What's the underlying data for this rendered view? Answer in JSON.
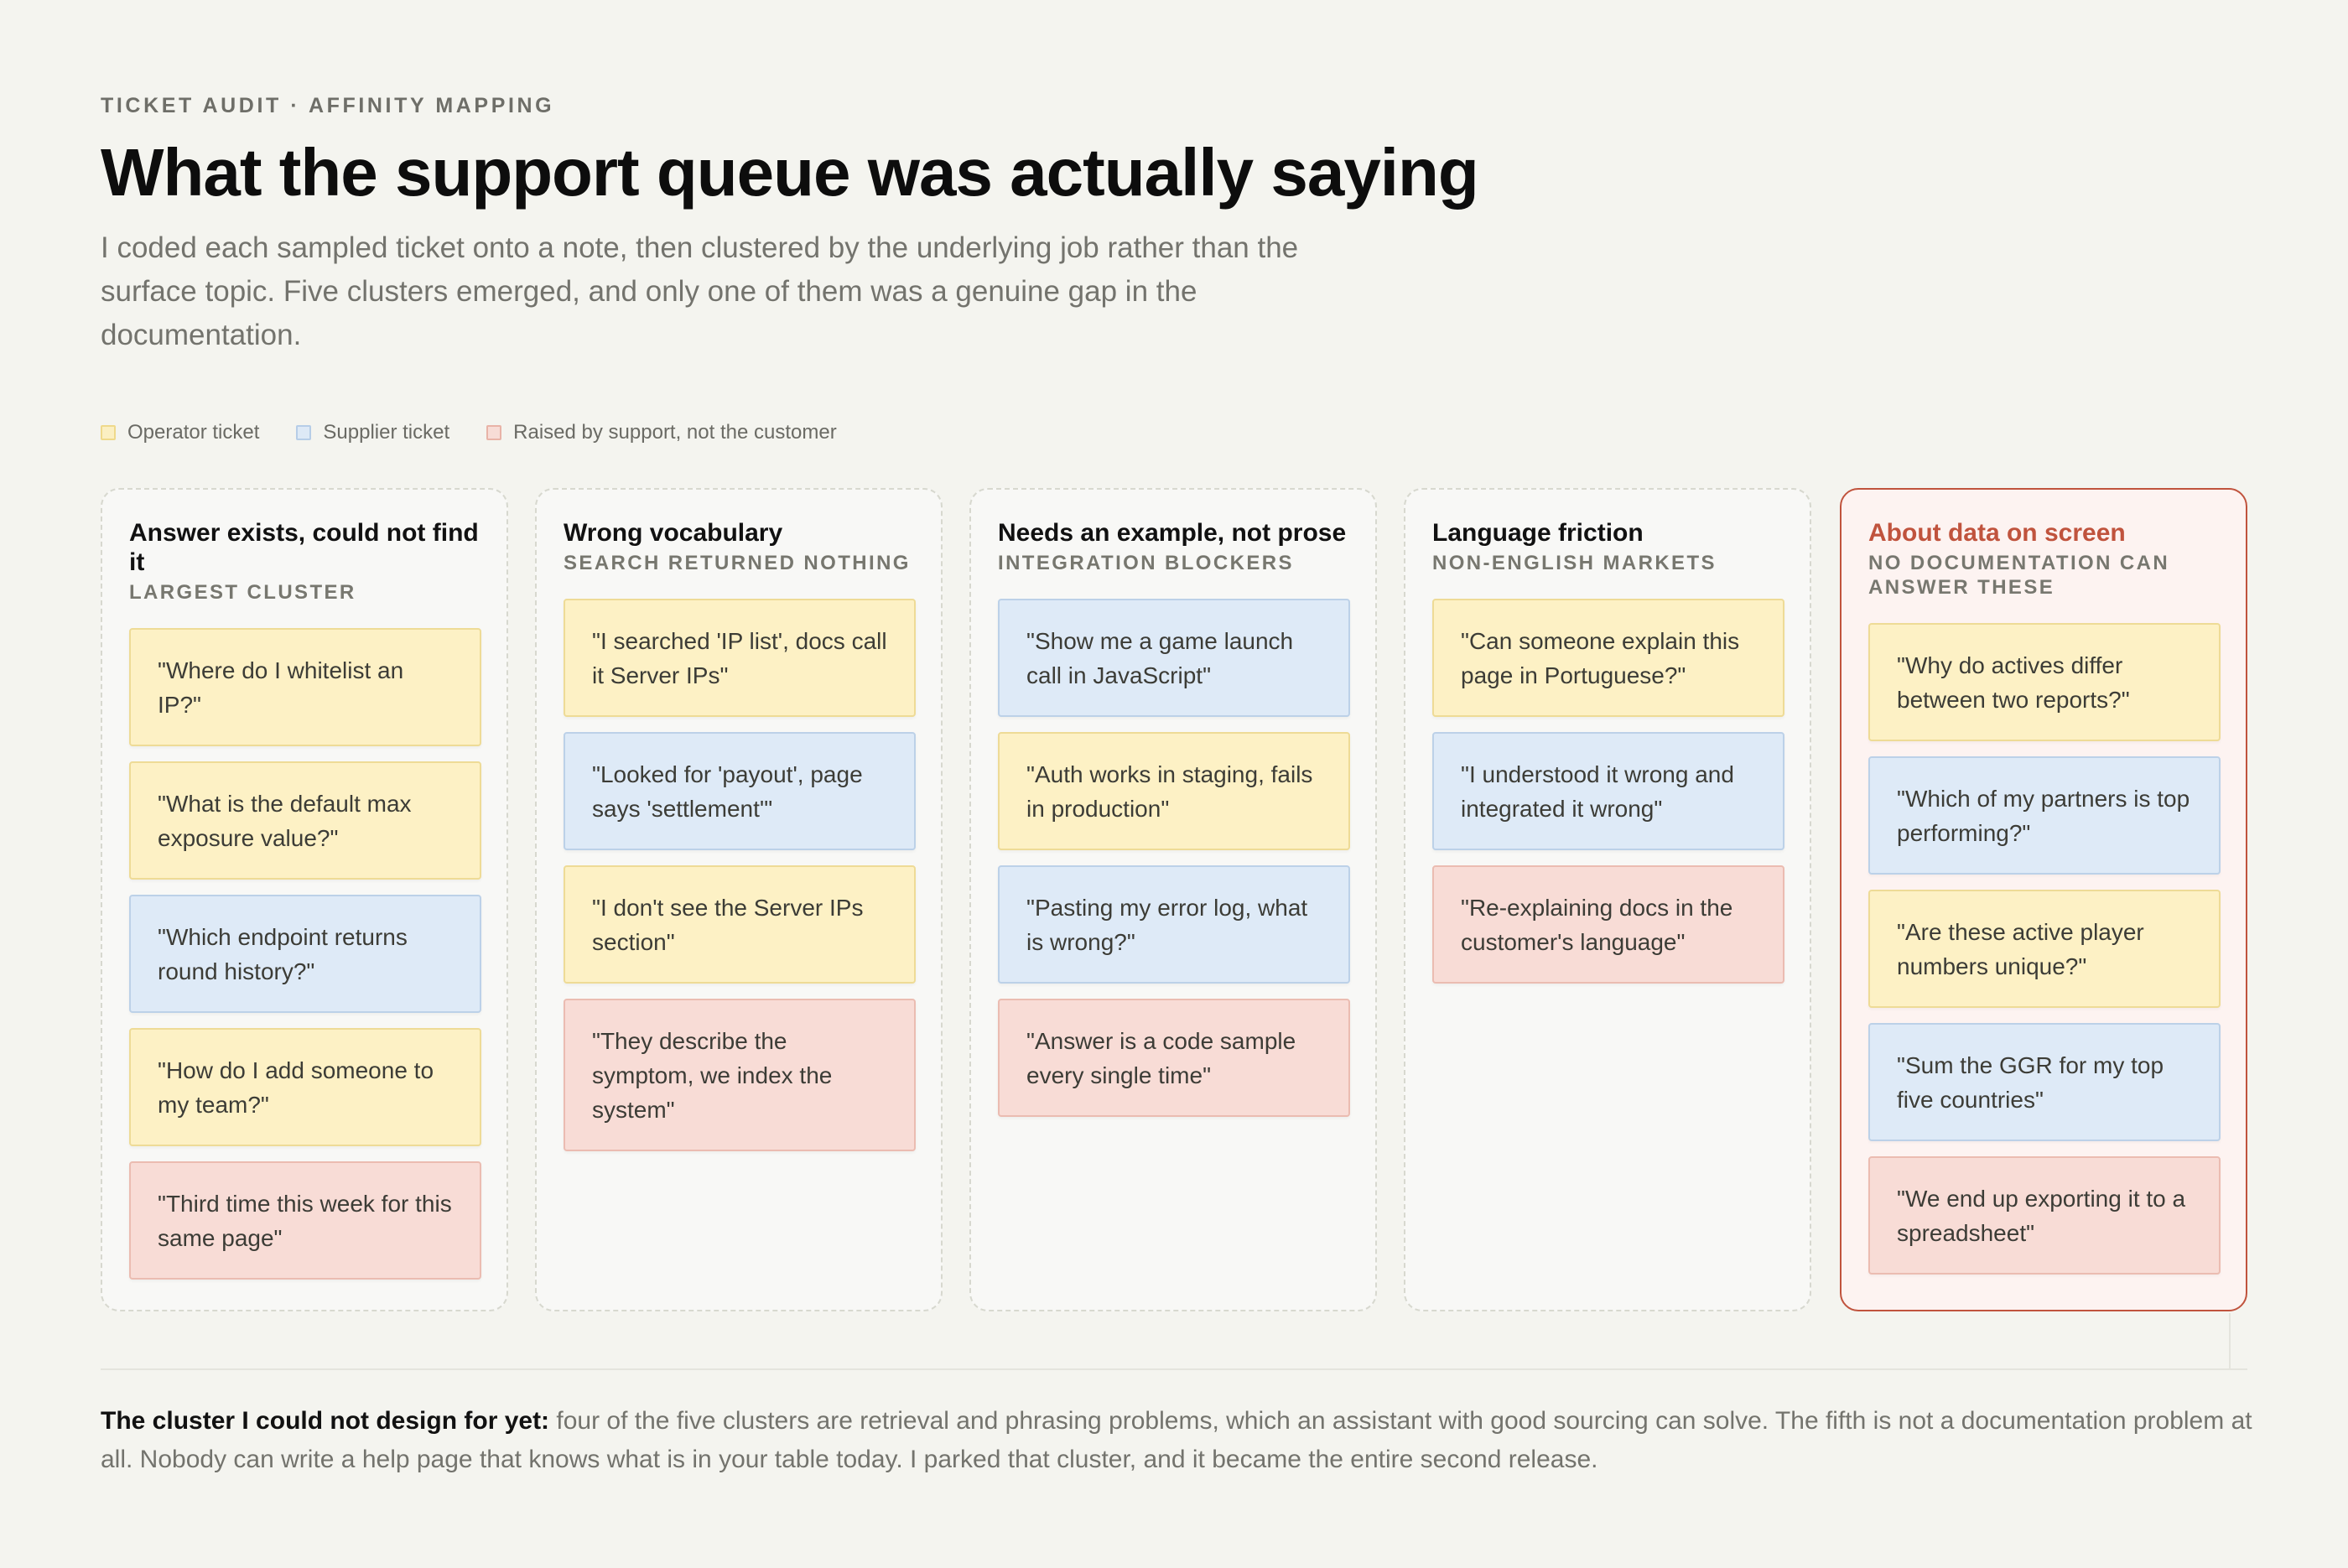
{
  "header": {
    "eyebrow": "TICKET AUDIT · AFFINITY MAPPING",
    "title": "What the support queue was actually saying",
    "intro": "I coded each sampled ticket onto a note, then clustered by the underlying job rather than the surface topic. Five clusters emerged, and only one of them was a genuine gap in the documentation."
  },
  "legend": {
    "operator": "Operator ticket",
    "supplier": "Supplier ticket",
    "support": "Raised by support, not the customer"
  },
  "colors": {
    "operator": "#fdf1c5",
    "supplier": "#deeaf7",
    "support": "#f8dcd6",
    "highlight": "#c0533d"
  },
  "clusters": [
    {
      "name": "Answer exists, could not find it",
      "sub": "LARGEST CLUSTER",
      "notes": [
        {
          "type": "operator",
          "text": "\"Where do I whitelist an IP?\""
        },
        {
          "type": "operator",
          "text": "\"What is the default max exposure value?\""
        },
        {
          "type": "supplier",
          "text": "\"Which endpoint returns round history?\""
        },
        {
          "type": "operator",
          "text": "\"How do I add someone to my team?\""
        },
        {
          "type": "support",
          "text": "\"Third time this week for this same page\""
        }
      ]
    },
    {
      "name": "Wrong vocabulary",
      "sub": "SEARCH RETURNED NOTHING",
      "notes": [
        {
          "type": "operator",
          "text": "\"I searched 'IP list', docs call it Server IPs\""
        },
        {
          "type": "supplier",
          "text": "\"Looked for 'payout', page says 'settlement'\""
        },
        {
          "type": "operator",
          "text": "\"I don't see the Server IPs section\""
        },
        {
          "type": "support",
          "text": "\"They describe the symptom, we index the system\""
        }
      ]
    },
    {
      "name": "Needs an example, not prose",
      "sub": "INTEGRATION BLOCKERS",
      "notes": [
        {
          "type": "supplier",
          "text": "\"Show me a game launch call in JavaScript\""
        },
        {
          "type": "operator",
          "text": "\"Auth works in staging, fails in production\""
        },
        {
          "type": "supplier",
          "text": "\"Pasting my error log, what is wrong?\""
        },
        {
          "type": "support",
          "text": "\"Answer is a code sample every single time\""
        }
      ]
    },
    {
      "name": "Language friction",
      "sub": "NON-ENGLISH MARKETS",
      "notes": [
        {
          "type": "operator",
          "text": "\"Can someone explain this page in Portuguese?\""
        },
        {
          "type": "supplier",
          "text": "\"I understood it wrong and integrated it wrong\""
        },
        {
          "type": "support",
          "text": "\"Re-explaining docs in the customer's language\""
        }
      ]
    },
    {
      "name": "About data on screen",
      "sub": "NO DOCUMENTATION CAN ANSWER THESE",
      "notes": [
        {
          "type": "operator",
          "text": "\"Why do actives differ between two reports?\""
        },
        {
          "type": "supplier",
          "text": "\"Which of my partners is top performing?\""
        },
        {
          "type": "operator",
          "text": "\"Are these active player numbers unique?\""
        },
        {
          "type": "supplier",
          "text": "\"Sum the GGR for my top five countries\""
        },
        {
          "type": "support",
          "text": "\"We end up exporting it to a spreadsheet\""
        }
      ]
    }
  ],
  "footer": {
    "lead": "The cluster I could not design for yet:",
    "body": " four of the five clusters are retrieval and phrasing problems, which an assistant with good sourcing can solve. The fifth is not a documentation problem at all. Nobody can write a help page that knows what is in your table today. I parked that cluster, and it became the entire second release."
  }
}
